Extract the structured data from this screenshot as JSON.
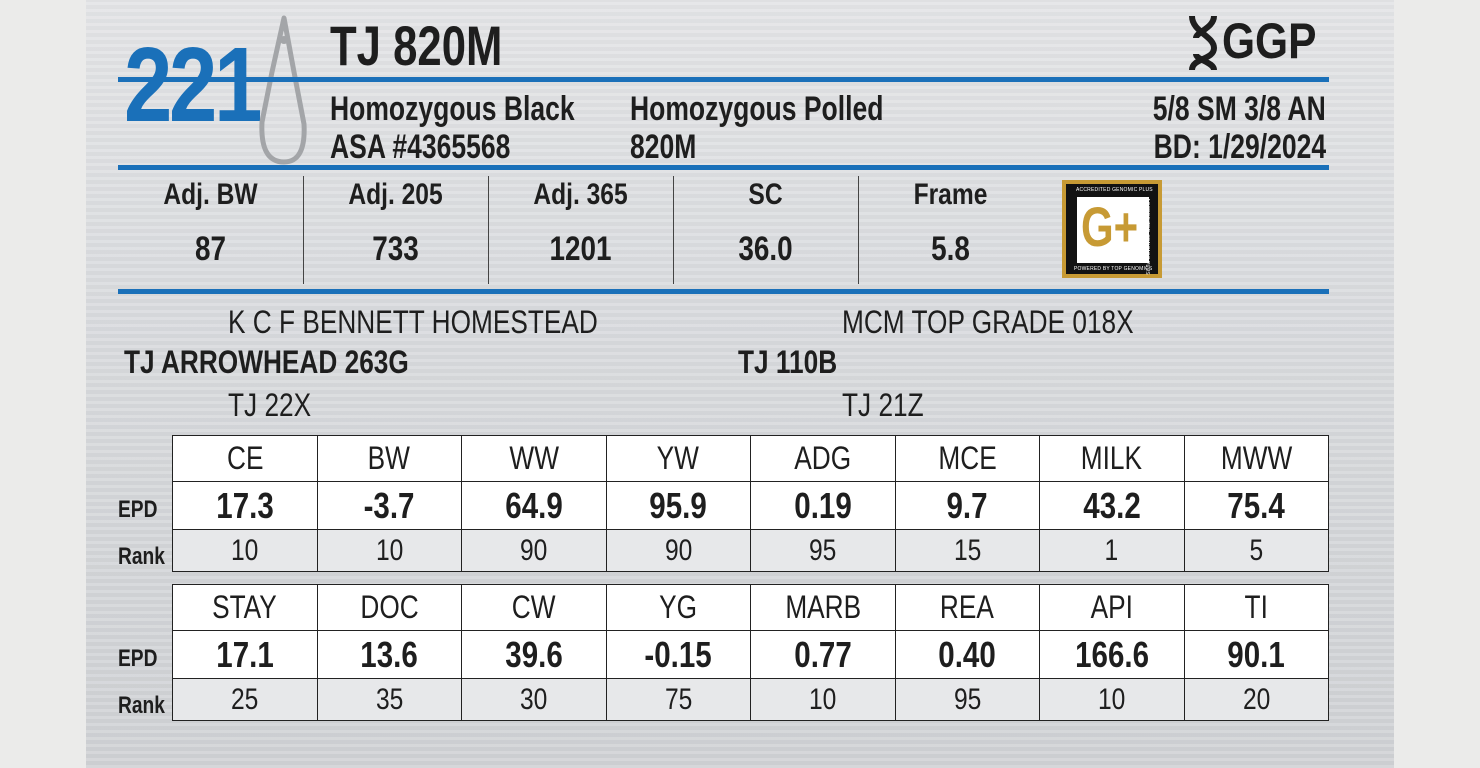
{
  "lot_number": "221",
  "animal_name": "TJ 820M",
  "logo": {
    "text": "GGP",
    "icon": "dna-helix-icon"
  },
  "info": {
    "color": "Homozygous Black",
    "registration": "ASA #4365568",
    "polled": "Homozygous Polled",
    "tattoo": "820M",
    "breed": "5/8 SM 3/8 AN",
    "birth_date": "BD: 1/29/2024"
  },
  "stats": [
    {
      "label": "Adj. BW",
      "value": "87"
    },
    {
      "label": "Adj. 205",
      "value": "733"
    },
    {
      "label": "Adj. 365",
      "value": "1201"
    },
    {
      "label": "SC",
      "value": "36.0"
    },
    {
      "label": "Frame",
      "value": "5.8"
    }
  ],
  "badge": {
    "letter": "G+",
    "top_text": "ACCREDITED GENOMIC PLUS",
    "side_text": "ACCREDITED GENOMIC PLUS",
    "bottom_text": "POWERED BY TOP GENOMICS"
  },
  "pedigree": {
    "sire": "TJ ARROWHEAD 263G",
    "sire_sire": "K C F BENNETT HOMESTEAD",
    "sire_dam": "TJ 22X",
    "dam": "TJ 110B",
    "dam_sire": "MCM TOP GRADE 018X",
    "dam_dam": "TJ 21Z"
  },
  "row_labels": {
    "epd": "EPD",
    "rank": "Rank"
  },
  "epd_table_1": {
    "headers": [
      "CE",
      "BW",
      "WW",
      "YW",
      "ADG",
      "MCE",
      "MILK",
      "MWW"
    ],
    "epd": [
      "17.3",
      "-3.7",
      "64.9",
      "95.9",
      "0.19",
      "9.7",
      "43.2",
      "75.4"
    ],
    "rank": [
      "10",
      "10",
      "90",
      "90",
      "95",
      "15",
      "1",
      "5"
    ]
  },
  "epd_table_2": {
    "headers": [
      "STAY",
      "DOC",
      "CW",
      "YG",
      "MARB",
      "REA",
      "API",
      "TI"
    ],
    "epd": [
      "17.1",
      "13.6",
      "39.6",
      "-0.15",
      "0.77",
      "0.40",
      "166.6",
      "90.1"
    ],
    "rank": [
      "25",
      "35",
      "30",
      "75",
      "10",
      "95",
      "10",
      "20"
    ]
  },
  "colors": {
    "accent_blue": "#1a70b9",
    "badge_gold": "#c79a34"
  }
}
